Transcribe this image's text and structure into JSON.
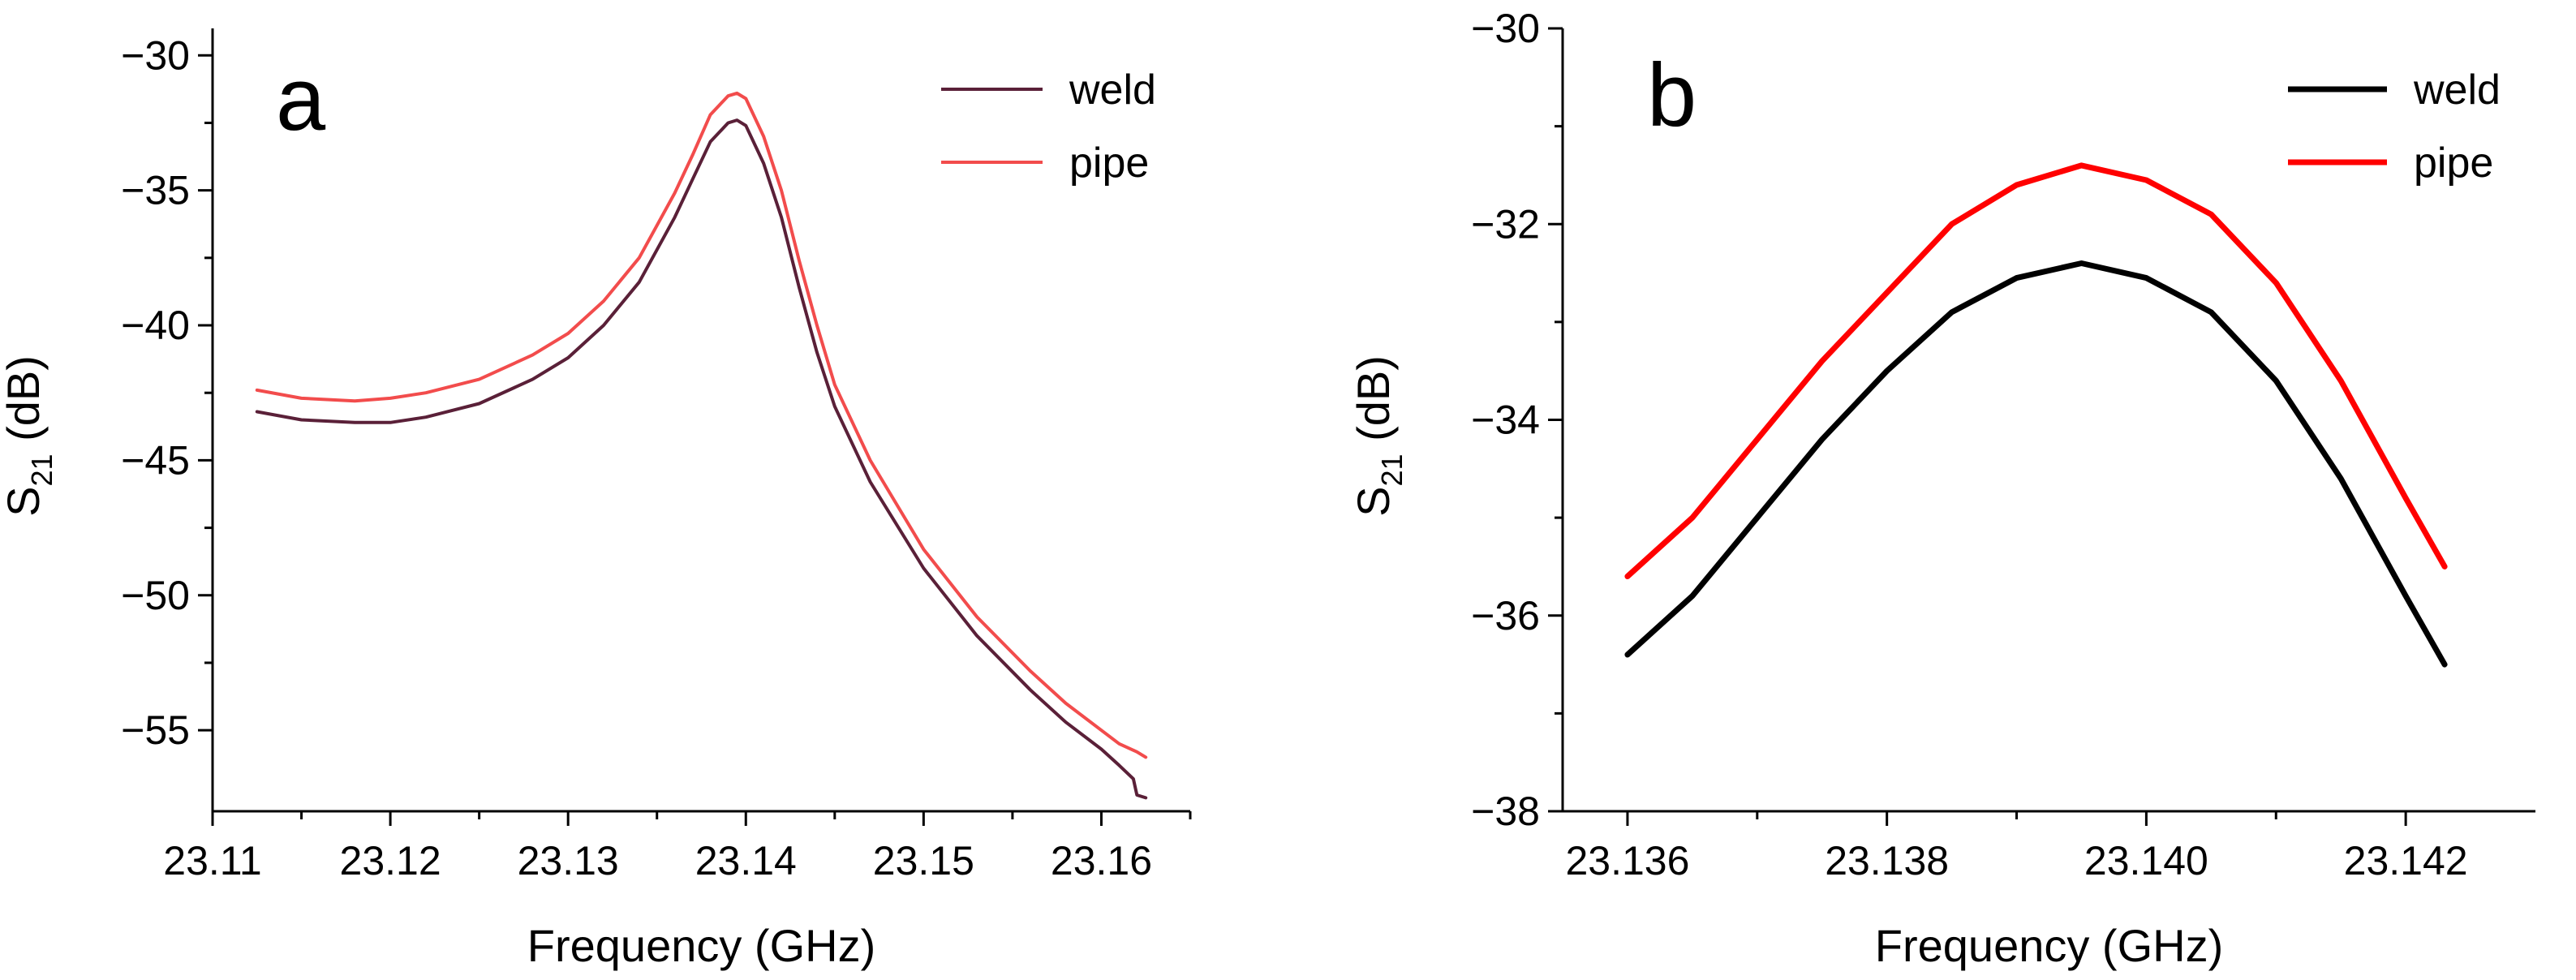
{
  "chart_data": [
    {
      "type": "line",
      "panel_label": "a",
      "xlabel": "Frequency (GHz)",
      "ylabel_main": "S",
      "ylabel_sub": "21",
      "ylabel_unit": " (dB)",
      "xlim": [
        23.11,
        23.165
      ],
      "ylim": [
        -58,
        -29
      ],
      "xticks": [
        23.11,
        23.12,
        23.13,
        23.14,
        23.15,
        23.16
      ],
      "xtick_labels": [
        "23.11",
        "23.12",
        "23.13",
        "23.14",
        "23.15",
        "23.16"
      ],
      "yticks": [
        -55,
        -50,
        -45,
        -40,
        -35,
        -30
      ],
      "ytick_labels": [
        "−55",
        "−50",
        "−45",
        "−40",
        "−35",
        "−30"
      ],
      "legend_position": "top-right",
      "series": [
        {
          "name": "weld",
          "color": "#5a2038",
          "x": [
            23.1125,
            23.115,
            23.118,
            23.12,
            23.122,
            23.125,
            23.128,
            23.13,
            23.132,
            23.134,
            23.136,
            23.137,
            23.138,
            23.139,
            23.1395,
            23.14,
            23.141,
            23.142,
            23.143,
            23.144,
            23.145,
            23.147,
            23.15,
            23.153,
            23.156,
            23.158,
            23.16,
            23.161,
            23.1618,
            23.162,
            23.1625
          ],
          "y": [
            -43.2,
            -43.5,
            -43.6,
            -43.6,
            -43.4,
            -42.9,
            -42.0,
            -41.2,
            -40.0,
            -38.4,
            -36.0,
            -34.6,
            -33.2,
            -32.5,
            -32.4,
            -32.6,
            -34.0,
            -36.0,
            -38.6,
            -41.0,
            -43.0,
            -45.8,
            -49.0,
            -51.5,
            -53.5,
            -54.7,
            -55.7,
            -56.3,
            -56.8,
            -57.4,
            -57.5
          ]
        },
        {
          "name": "pipe",
          "color": "#f24c4c",
          "x": [
            23.1125,
            23.115,
            23.118,
            23.12,
            23.122,
            23.125,
            23.128,
            23.13,
            23.132,
            23.134,
            23.136,
            23.137,
            23.138,
            23.139,
            23.1395,
            23.14,
            23.141,
            23.142,
            23.143,
            23.144,
            23.145,
            23.147,
            23.15,
            23.153,
            23.156,
            23.158,
            23.16,
            23.161,
            23.162,
            23.1625
          ],
          "y": [
            -42.4,
            -42.7,
            -42.8,
            -42.7,
            -42.5,
            -42.0,
            -41.1,
            -40.3,
            -39.1,
            -37.5,
            -35.1,
            -33.7,
            -32.2,
            -31.5,
            -31.4,
            -31.6,
            -33.0,
            -35.0,
            -37.6,
            -40.0,
            -42.2,
            -45.0,
            -48.3,
            -50.8,
            -52.8,
            -54.0,
            -55.0,
            -55.5,
            -55.8,
            -56.0
          ]
        }
      ]
    },
    {
      "type": "line",
      "panel_label": "b",
      "xlabel": "Frequency (GHz)",
      "ylabel_main": "S",
      "ylabel_sub": "21",
      "ylabel_unit": " (dB)",
      "xlim": [
        23.1355,
        23.143
      ],
      "ylim": [
        -38,
        -30
      ],
      "xticks": [
        23.136,
        23.138,
        23.14,
        23.142
      ],
      "xtick_labels": [
        "23.136",
        "23.138",
        "23.140",
        "23.142"
      ],
      "yticks": [
        -38,
        -36,
        -34,
        -32,
        -30
      ],
      "ytick_labels": [
        "−38",
        "−36",
        "−34",
        "−32",
        "−30"
      ],
      "legend_position": "top-right",
      "series": [
        {
          "name": "weld",
          "color": "#000000",
          "x": [
            23.136,
            23.1365,
            23.137,
            23.1375,
            23.138,
            23.1385,
            23.139,
            23.1395,
            23.14,
            23.1405,
            23.141,
            23.1415,
            23.142,
            23.1423
          ],
          "y": [
            -36.4,
            -35.8,
            -35.0,
            -34.2,
            -33.5,
            -32.9,
            -32.55,
            -32.4,
            -32.55,
            -32.9,
            -33.6,
            -34.6,
            -35.8,
            -36.5
          ]
        },
        {
          "name": "pipe",
          "color": "#ff0000",
          "x": [
            23.136,
            23.1365,
            23.137,
            23.1375,
            23.138,
            23.1385,
            23.139,
            23.1395,
            23.14,
            23.1405,
            23.141,
            23.1415,
            23.142,
            23.1423
          ],
          "y": [
            -35.6,
            -35.0,
            -34.2,
            -33.4,
            -32.7,
            -32.0,
            -31.6,
            -31.4,
            -31.55,
            -31.9,
            -32.6,
            -33.6,
            -34.8,
            -35.5
          ]
        }
      ]
    }
  ]
}
